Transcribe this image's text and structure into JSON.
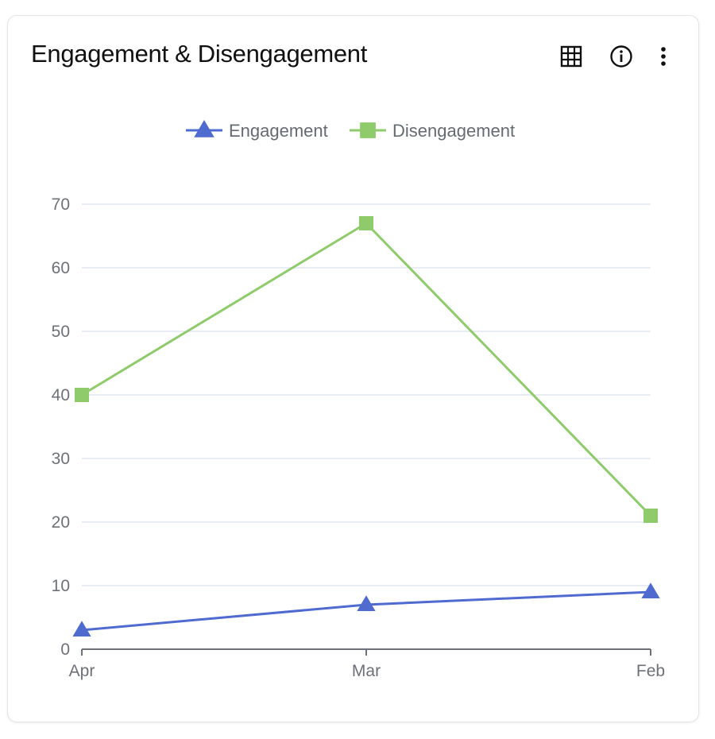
{
  "card": {
    "title": "Engagement & Disengagement"
  },
  "toolbar": {
    "table_icon": "table-grid-icon",
    "info_icon": "info-icon",
    "more_icon": "more-vertical-icon"
  },
  "chart_data": {
    "type": "line",
    "title": "Engagement & Disengagement",
    "categories": [
      "Apr",
      "Mar",
      "Feb"
    ],
    "ylim": [
      0,
      70
    ],
    "yticks": [
      0,
      10,
      20,
      30,
      40,
      50,
      60,
      70
    ],
    "grid": true,
    "legend_position": "top-center",
    "series": [
      {
        "name": "Engagement",
        "values": [
          3,
          7,
          9
        ],
        "color": "#4f6bd0",
        "marker": "triangle"
      },
      {
        "name": "Disengagement",
        "values": [
          40,
          67,
          21
        ],
        "color": "#8fcb6b",
        "marker": "square"
      }
    ]
  }
}
